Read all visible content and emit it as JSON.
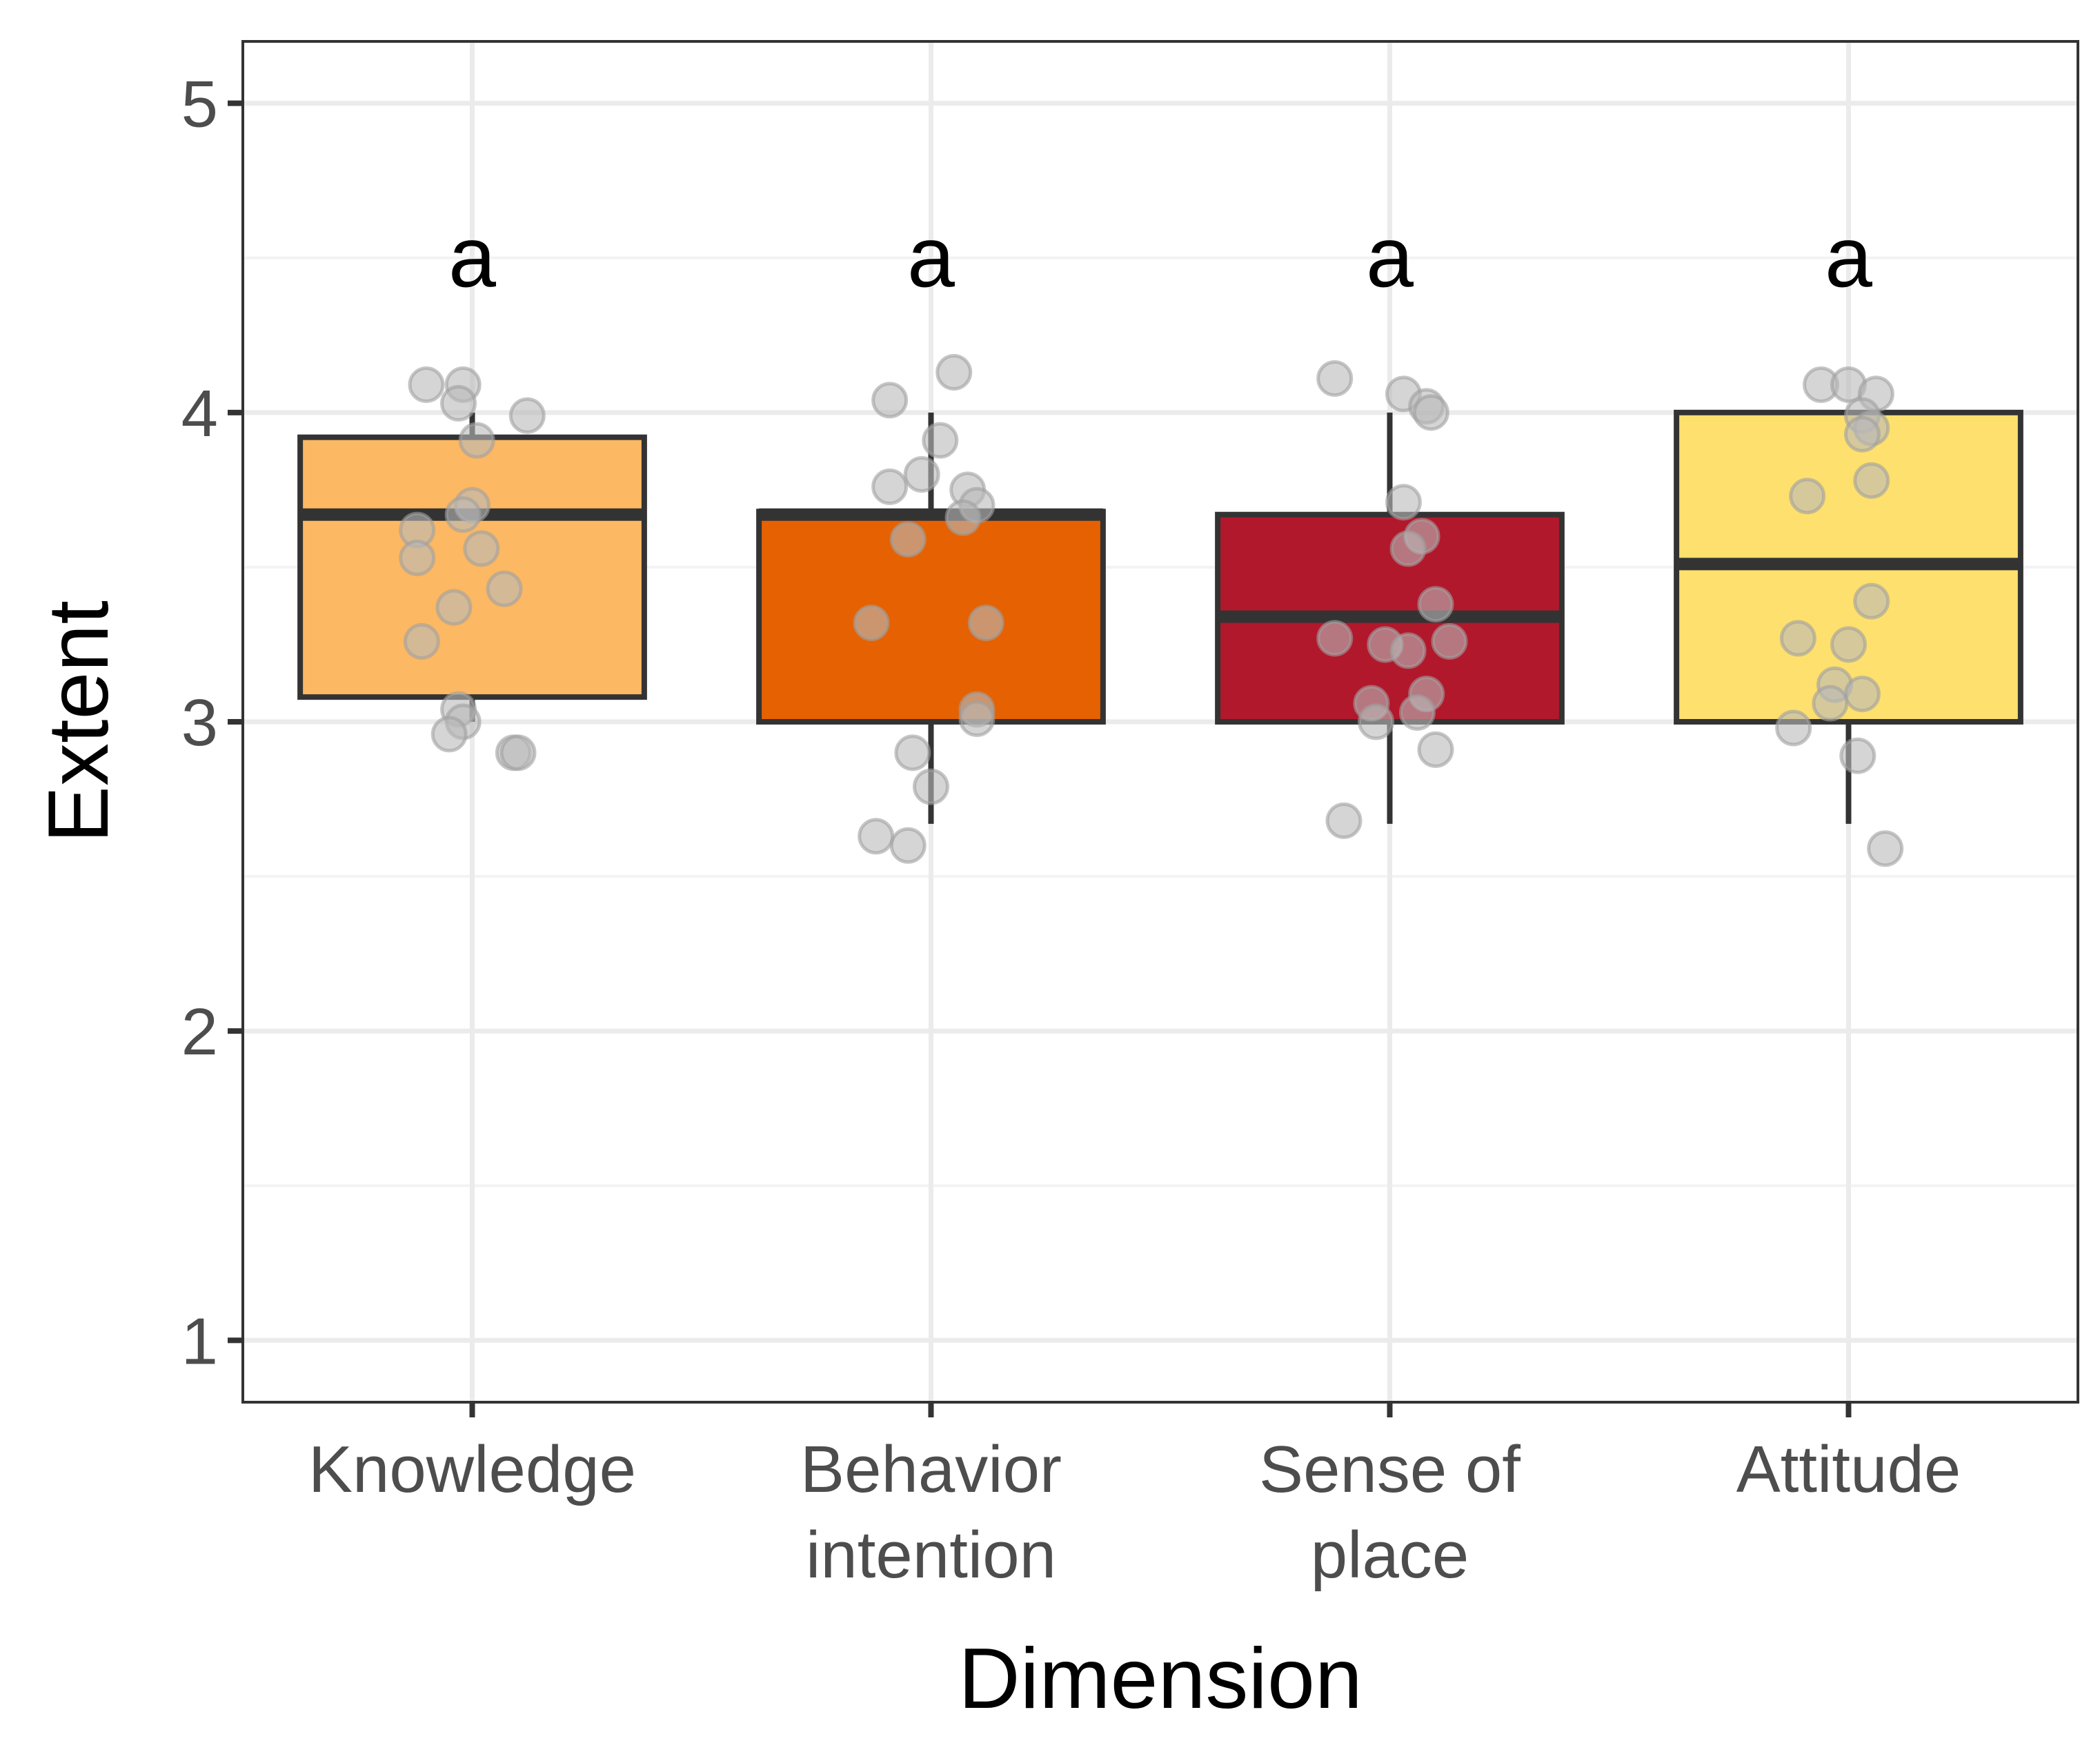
{
  "chart_data": {
    "type": "box",
    "title": "",
    "xlabel": "Dimension",
    "ylabel": "Extent",
    "ylim": [
      0.8,
      5.2
    ],
    "yticks": [
      1,
      2,
      3,
      4,
      5
    ],
    "grid": true,
    "categories": [
      {
        "label_lines": [
          "Knowledge"
        ],
        "color": "#FDB863",
        "significance": "a",
        "box": {
          "q1": 3.08,
          "median": 3.67,
          "q3": 3.92,
          "whisker_low": 3.0,
          "whisker_high": 4.0
        },
        "points": [
          [
            -0.1,
            4.09
          ],
          [
            -0.02,
            4.09
          ],
          [
            -0.03,
            4.03
          ],
          [
            0.12,
            3.99
          ],
          [
            0.01,
            3.91
          ],
          [
            0.0,
            3.7
          ],
          [
            -0.02,
            3.67
          ],
          [
            -0.12,
            3.62
          ],
          [
            0.02,
            3.56
          ],
          [
            -0.12,
            3.53
          ],
          [
            0.07,
            3.43
          ],
          [
            -0.04,
            3.37
          ],
          [
            -0.11,
            3.26
          ],
          [
            -0.03,
            3.04
          ],
          [
            -0.02,
            3.0
          ],
          [
            -0.05,
            2.96
          ],
          [
            0.09,
            2.9
          ],
          [
            0.1,
            2.9
          ]
        ]
      },
      {
        "label_lines": [
          "Behavior",
          "intention"
        ],
        "color": "#E66101",
        "significance": "a",
        "box": {
          "q1": 3.0,
          "median": 3.67,
          "q3": 3.68,
          "whisker_low": 2.67,
          "whisker_high": 4.0
        },
        "points": [
          [
            0.05,
            4.13
          ],
          [
            -0.09,
            4.04
          ],
          [
            0.02,
            3.91
          ],
          [
            -0.02,
            3.8
          ],
          [
            -0.09,
            3.76
          ],
          [
            0.08,
            3.75
          ],
          [
            0.1,
            3.7
          ],
          [
            0.07,
            3.66
          ],
          [
            -0.05,
            3.59
          ],
          [
            -0.13,
            3.32
          ],
          [
            0.12,
            3.32
          ],
          [
            0.1,
            3.04
          ],
          [
            0.1,
            3.01
          ],
          [
            -0.04,
            2.9
          ],
          [
            0.0,
            2.79
          ],
          [
            -0.12,
            2.63
          ],
          [
            -0.05,
            2.6
          ]
        ]
      },
      {
        "label_lines": [
          "Sense of",
          "place"
        ],
        "color": "#B2182B",
        "significance": "a",
        "box": {
          "q1": 3.0,
          "median": 3.34,
          "q3": 3.67,
          "whisker_low": 2.67,
          "whisker_high": 4.0
        },
        "points": [
          [
            -0.12,
            4.11
          ],
          [
            0.03,
            4.06
          ],
          [
            0.08,
            4.02
          ],
          [
            0.09,
            4.0
          ],
          [
            0.03,
            3.71
          ],
          [
            0.07,
            3.6
          ],
          [
            0.04,
            3.56
          ],
          [
            0.1,
            3.38
          ],
          [
            -0.12,
            3.27
          ],
          [
            -0.01,
            3.25
          ],
          [
            0.04,
            3.23
          ],
          [
            0.13,
            3.26
          ],
          [
            0.08,
            3.09
          ],
          [
            -0.04,
            3.06
          ],
          [
            0.06,
            3.03
          ],
          [
            -0.03,
            3.0
          ],
          [
            0.1,
            2.91
          ],
          [
            -0.1,
            2.68
          ]
        ]
      },
      {
        "label_lines": [
          "Attitude"
        ],
        "color": "#FEE06E",
        "significance": "a",
        "box": {
          "q1": 3.0,
          "median": 3.51,
          "q3": 4.0,
          "whisker_low": 2.67,
          "whisker_high": 4.0
        },
        "points": [
          [
            -0.06,
            4.09
          ],
          [
            0.0,
            4.09
          ],
          [
            0.06,
            4.06
          ],
          [
            0.03,
            3.99
          ],
          [
            0.05,
            3.95
          ],
          [
            0.03,
            3.93
          ],
          [
            0.05,
            3.78
          ],
          [
            -0.09,
            3.73
          ],
          [
            0.05,
            3.39
          ],
          [
            -0.11,
            3.27
          ],
          [
            0.0,
            3.25
          ],
          [
            -0.03,
            3.12
          ],
          [
            0.03,
            3.09
          ],
          [
            -0.04,
            3.06
          ],
          [
            -0.12,
            2.98
          ],
          [
            0.02,
            2.89
          ],
          [
            0.08,
            2.59
          ]
        ]
      }
    ]
  }
}
